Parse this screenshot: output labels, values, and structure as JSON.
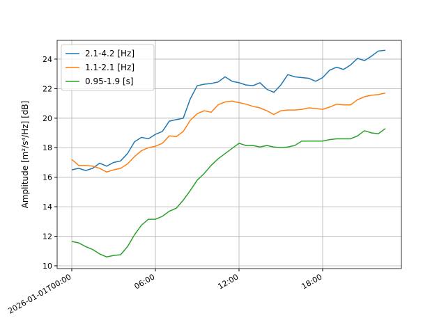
{
  "chart_data": {
    "type": "line",
    "y_label": "Amplitude [m²/s⁴/Hz] [dB]",
    "x": [
      0,
      0.5,
      1,
      1.5,
      2,
      2.5,
      3,
      3.5,
      4,
      4.5,
      5,
      5.5,
      6,
      6.5,
      7,
      7.5,
      8,
      8.5,
      9,
      9.5,
      10,
      10.5,
      11,
      11.5,
      12,
      12.5,
      13,
      13.5,
      14,
      14.5,
      15,
      15.5,
      16,
      16.5,
      17,
      17.5,
      18,
      18.5,
      19,
      19.5,
      20,
      20.5,
      21,
      21.5,
      22,
      22.5
    ],
    "series": [
      {
        "name": "2.1-4.2 [Hz]",
        "color": "#1f77b4",
        "values": [
          16.5,
          16.6,
          16.45,
          16.6,
          16.95,
          16.75,
          17.0,
          17.1,
          17.6,
          18.4,
          18.7,
          18.6,
          18.9,
          19.1,
          19.8,
          19.9,
          20.0,
          21.3,
          22.2,
          22.3,
          22.35,
          22.45,
          22.8,
          22.5,
          22.4,
          22.25,
          22.2,
          22.4,
          21.95,
          21.75,
          22.25,
          22.95,
          22.8,
          22.75,
          22.7,
          22.5,
          22.75,
          23.25,
          23.45,
          23.3,
          23.6,
          24.05,
          23.9,
          24.2,
          24.55,
          24.6
        ]
      },
      {
        "name": "1.1-2.1 [Hz]",
        "color": "#ff7f0e",
        "values": [
          17.2,
          16.8,
          16.8,
          16.75,
          16.6,
          16.35,
          16.5,
          16.6,
          16.9,
          17.4,
          17.8,
          18.0,
          18.1,
          18.3,
          18.8,
          18.75,
          19.1,
          19.85,
          20.3,
          20.5,
          20.4,
          20.9,
          21.1,
          21.15,
          21.05,
          20.95,
          20.8,
          20.7,
          20.5,
          20.25,
          20.5,
          20.55,
          20.55,
          20.6,
          20.7,
          20.65,
          20.6,
          20.75,
          20.95,
          20.9,
          20.9,
          21.25,
          21.45,
          21.55,
          21.6,
          21.7
        ]
      },
      {
        "name": "0.95-1.9 [s]",
        "color": "#2ca02c",
        "values": [
          11.65,
          11.55,
          11.3,
          11.1,
          10.8,
          10.6,
          10.7,
          10.75,
          11.3,
          12.1,
          12.75,
          13.15,
          13.15,
          13.35,
          13.7,
          13.9,
          14.45,
          15.1,
          15.8,
          16.25,
          16.8,
          17.25,
          17.6,
          17.95,
          18.3,
          18.15,
          18.15,
          18.05,
          18.15,
          18.05,
          18.0,
          18.05,
          18.15,
          18.45,
          18.45,
          18.45,
          18.45,
          18.55,
          18.6,
          18.6,
          18.6,
          18.8,
          19.15,
          19.0,
          18.95,
          19.3
        ]
      }
    ],
    "xlim": [
      -1.05,
      23.65
    ],
    "xticks": [
      {
        "value": 0,
        "label": "2026-01-01T00:00"
      },
      {
        "value": 6,
        "label": "06:00"
      },
      {
        "value": 12,
        "label": "12:00"
      },
      {
        "value": 18,
        "label": "18:00"
      }
    ],
    "ylim": [
      9.81,
      25.27
    ],
    "yticks": [
      10,
      12,
      14,
      16,
      18,
      20,
      22,
      24
    ],
    "grid": true,
    "legend": "upper-left"
  }
}
